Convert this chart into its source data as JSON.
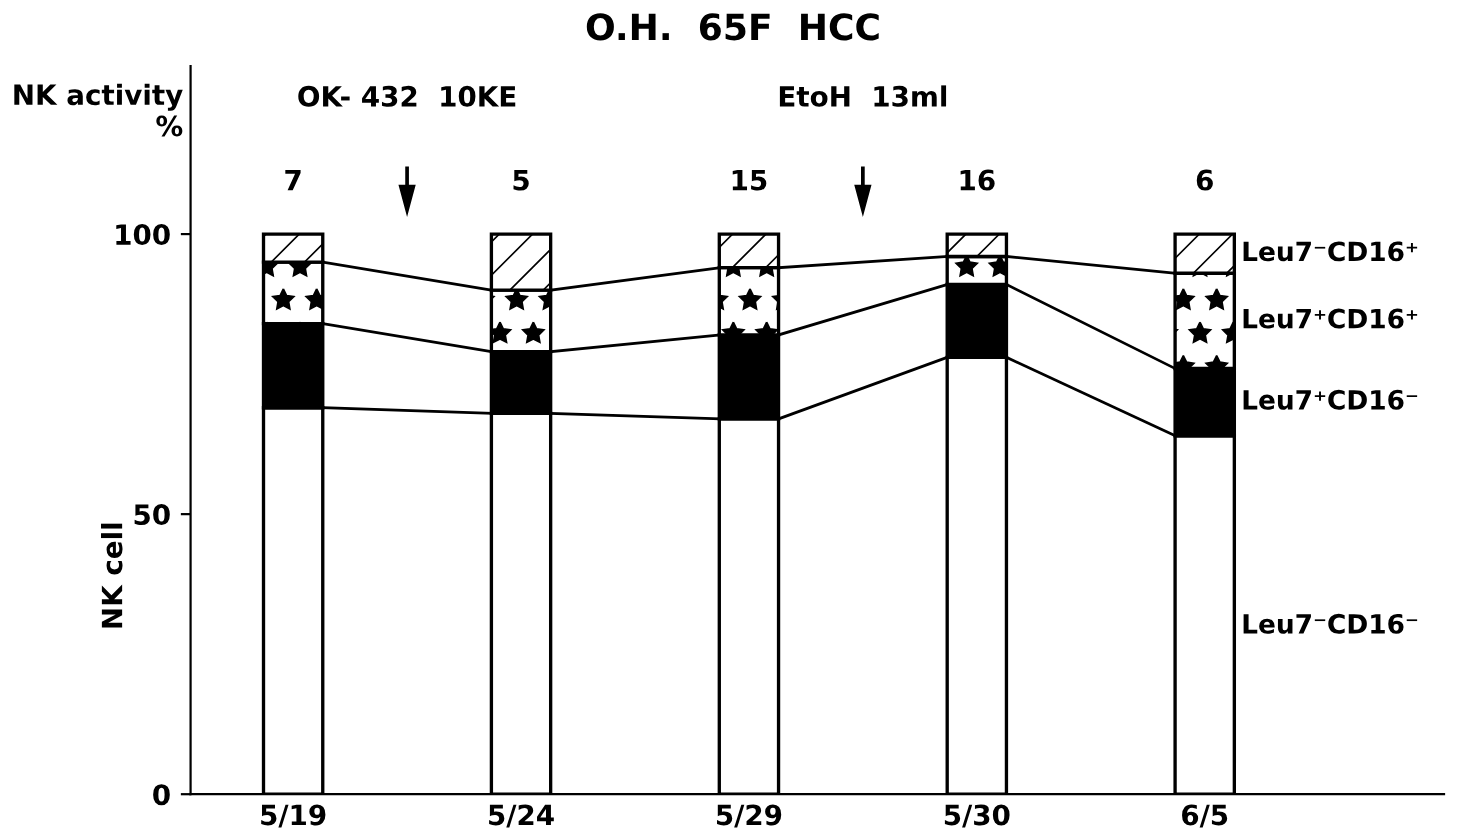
{
  "chart_data": {
    "type": "bar",
    "stacked": true,
    "title": "O.H.  65F  HCC",
    "ylabel": "NK cell",
    "categories": [
      "5/19",
      "5/24",
      "5/29",
      "5/30",
      "6/5"
    ],
    "series": [
      {
        "name": "Leu7⁻CD16⁻",
        "color": "#ffffff",
        "values": [
          69,
          68,
          67,
          78,
          64
        ]
      },
      {
        "name": "Leu7⁺CD16⁻",
        "color": "#000000",
        "values": [
          15,
          11,
          15,
          13,
          12
        ]
      },
      {
        "name": "Leu7⁺CD16⁺",
        "color": "#000000",
        "values": [
          11,
          11,
          12,
          5,
          17
        ]
      },
      {
        "name": "Leu7⁻CD16⁺",
        "color": "#000000",
        "values": [
          5,
          10,
          6,
          4,
          7
        ]
      }
    ],
    "ylim": [
      0,
      130
    ],
    "yticks": [
      0,
      50,
      100
    ],
    "grid": false,
    "legend": false,
    "annotations": [
      "NK activity\n%",
      "OK- 432  10KE",
      "EtoH  13ml",
      "7",
      "5",
      "15",
      "16",
      "6"
    ]
  }
}
